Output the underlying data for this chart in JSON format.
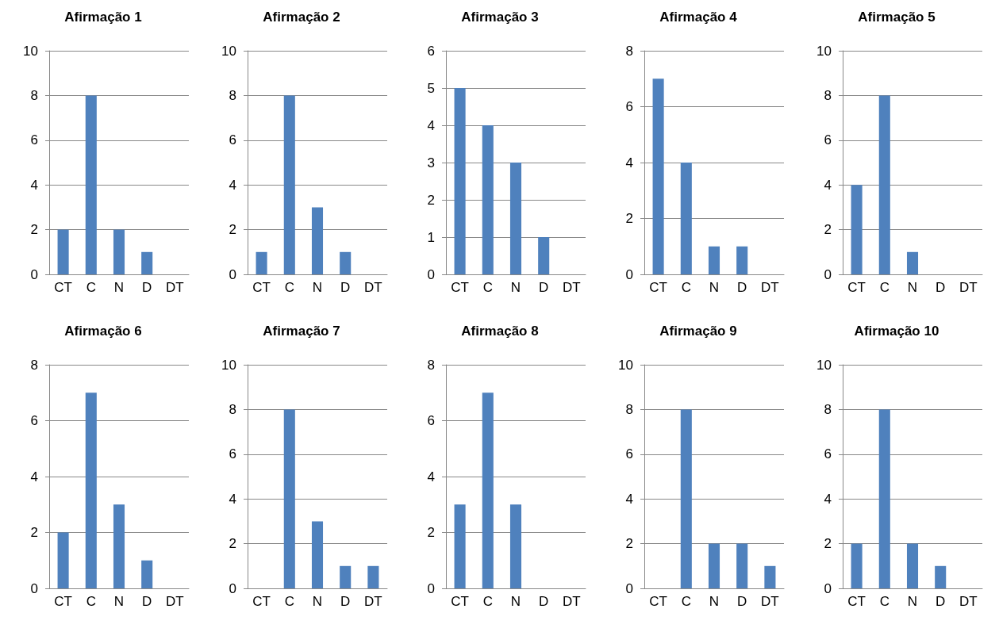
{
  "chart_data": [
    {
      "type": "bar",
      "title": "Afirmação 1",
      "categories": [
        "CT",
        "C",
        "N",
        "D",
        "DT"
      ],
      "values": [
        2,
        8,
        2,
        1,
        0
      ],
      "color": "#4f81bd",
      "ylim": [
        0,
        10
      ],
      "yticks": [
        0,
        2,
        4,
        6,
        8,
        10
      ],
      "grid": "y"
    },
    {
      "type": "bar",
      "title": "Afirmação 2",
      "categories": [
        "CT",
        "C",
        "N",
        "D",
        "DT"
      ],
      "values": [
        1,
        8,
        3,
        1,
        0
      ],
      "color": "#4f81bd",
      "ylim": [
        0,
        10
      ],
      "yticks": [
        0,
        2,
        4,
        6,
        8,
        10
      ],
      "grid": "y"
    },
    {
      "type": "bar",
      "title": "Afirmação 3",
      "categories": [
        "CT",
        "C",
        "N",
        "D",
        "DT"
      ],
      "values": [
        5,
        4,
        3,
        1,
        0
      ],
      "color": "#4f81bd",
      "ylim": [
        0,
        6
      ],
      "yticks": [
        0,
        1,
        2,
        3,
        4,
        5,
        6
      ],
      "grid": "y"
    },
    {
      "type": "bar",
      "title": "Afirmação 4",
      "categories": [
        "CT",
        "C",
        "N",
        "D",
        "DT"
      ],
      "values": [
        7,
        4,
        1,
        1,
        0
      ],
      "color": "#4f81bd",
      "ylim": [
        0,
        8
      ],
      "yticks": [
        0,
        2,
        4,
        6,
        8
      ],
      "grid": "y"
    },
    {
      "type": "bar",
      "title": "Afirmação 5",
      "categories": [
        "CT",
        "C",
        "N",
        "D",
        "DT"
      ],
      "values": [
        4,
        8,
        1,
        0,
        0
      ],
      "color": "#4f81bd",
      "ylim": [
        0,
        10
      ],
      "yticks": [
        0,
        2,
        4,
        6,
        8,
        10
      ],
      "grid": "y"
    },
    {
      "type": "bar",
      "title": "Afirmação 6",
      "categories": [
        "CT",
        "C",
        "N",
        "D",
        "DT"
      ],
      "values": [
        2,
        7,
        3,
        1,
        0
      ],
      "color": "#4f81bd",
      "ylim": [
        0,
        8
      ],
      "yticks": [
        0,
        2,
        4,
        6,
        8
      ],
      "grid": "y"
    },
    {
      "type": "bar",
      "title": "Afirmação 7",
      "categories": [
        "CT",
        "C",
        "N",
        "D",
        "DT"
      ],
      "values": [
        0,
        8,
        3,
        1,
        1
      ],
      "color": "#4f81bd",
      "ylim": [
        0,
        10
      ],
      "yticks": [
        0,
        2,
        4,
        6,
        8,
        10
      ],
      "grid": "y"
    },
    {
      "type": "bar",
      "title": "Afirmação 8",
      "categories": [
        "CT",
        "C",
        "N",
        "D",
        "DT"
      ],
      "values": [
        3,
        7,
        3,
        0,
        0
      ],
      "color": "#4f81bd",
      "ylim": [
        0,
        8
      ],
      "yticks": [
        0,
        2,
        4,
        6,
        8
      ],
      "grid": "y"
    },
    {
      "type": "bar",
      "title": "Afirmação 9",
      "categories": [
        "CT",
        "C",
        "N",
        "D",
        "DT"
      ],
      "values": [
        0,
        8,
        2,
        2,
        1
      ],
      "color": "#4f81bd",
      "ylim": [
        0,
        10
      ],
      "yticks": [
        0,
        2,
        4,
        6,
        8,
        10
      ],
      "grid": "y"
    },
    {
      "type": "bar",
      "title": "Afirmação 10",
      "categories": [
        "CT",
        "C",
        "N",
        "D",
        "DT"
      ],
      "values": [
        2,
        8,
        2,
        1,
        0
      ],
      "color": "#4f81bd",
      "ylim": [
        0,
        10
      ],
      "yticks": [
        0,
        2,
        4,
        6,
        8,
        10
      ],
      "grid": "y"
    }
  ]
}
